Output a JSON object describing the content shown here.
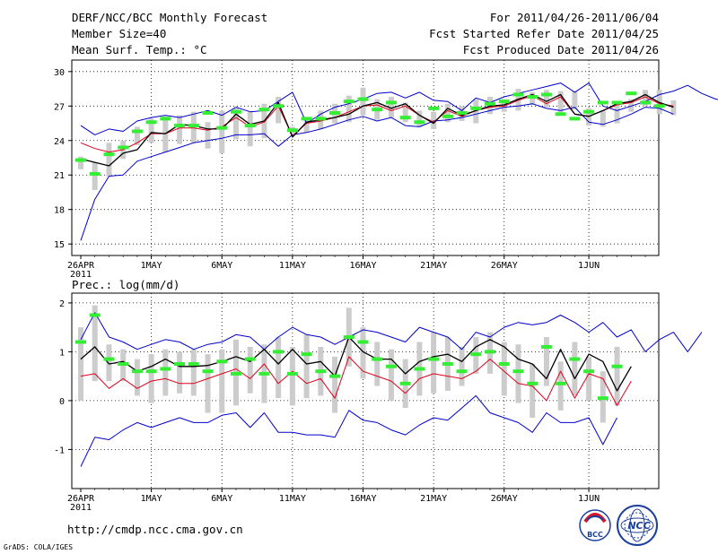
{
  "header": {
    "title": "DERF/NCC/BCC Monthly Forecast",
    "member_size": "Member Size=40",
    "variable": "Mean Surf. Temp.: °C",
    "period": "For 2011/04/26-2011/06/04",
    "fcst_started": "Fcst Started Refer Date 2011/04/25",
    "fcst_produced": "Fcst Produced Date 2011/04/26"
  },
  "footer": {
    "url": "http://cmdp.ncc.cma.gov.cn",
    "credit": "GrADS: COLA/IGES",
    "logo_bcc": "BCC",
    "logo_ncc": "NCC"
  },
  "colors": {
    "ensemble_range": "#0000cc",
    "mean": "#000000",
    "spread": "#e0001a",
    "observed": "#33ee33",
    "climate_box": "#cccccc",
    "grid": "#000000"
  },
  "x_tick_labels": [
    "26APR",
    "1MAY",
    "6MAY",
    "11MAY",
    "16MAY",
    "21MAY",
    "26MAY",
    "1JUN"
  ],
  "x_tick_days": [
    0,
    5,
    10,
    15,
    20,
    25,
    30,
    36
  ],
  "x_year_label": "2011",
  "chart_data": [
    {
      "type": "line",
      "title": "Mean Surf. Temp.: °C",
      "ylim": [
        14,
        31
      ],
      "yticks": [
        15,
        18,
        21,
        24,
        27,
        30
      ],
      "ndays": 40,
      "series": [
        {
          "name": "ensemble max",
          "color": "#0000cc",
          "values": [
            25.3,
            24.5,
            25.0,
            24.8,
            25.7,
            26.0,
            26.2,
            26.0,
            26.3,
            26.6,
            26.2,
            26.9,
            26.5,
            26.6,
            27.4,
            28.2,
            25.5,
            26.3,
            26.9,
            27.2,
            27.6,
            28.1,
            28.2,
            27.7,
            28.2,
            27.5,
            27.4,
            26.6,
            27.7,
            27.3,
            27.8,
            28.1,
            28.4,
            28.7,
            29.0,
            28.2,
            29.0,
            27.0,
            26.6,
            27.0,
            27.4,
            28.0,
            28.3,
            28.8,
            28.1,
            27.6,
            27.4
          ]
        },
        {
          "name": "ensemble mean",
          "color": "#000000",
          "values": [
            22.4,
            22.1,
            21.8,
            22.9,
            23.2,
            24.7,
            24.6,
            25.4,
            25.3,
            25.0,
            25.0,
            26.3,
            25.4,
            25.7,
            27.3,
            24.3,
            25.6,
            25.8,
            26.0,
            26.3,
            27.0,
            27.3,
            26.8,
            27.2,
            26.2,
            25.5,
            26.8,
            26.2,
            26.6,
            27.0,
            27.1,
            27.6,
            28.0,
            27.4,
            28.0,
            26.3,
            26.1,
            26.6,
            27.2,
            27.4,
            28.0,
            27.3,
            26.9
          ]
        },
        {
          "name": "ensemble median",
          "color": "#e0001a",
          "values": [
            23.8,
            23.3,
            23.0,
            23.2,
            23.8,
            24.6,
            24.6,
            25.1,
            25.1,
            24.9,
            25.2,
            26.0,
            25.2,
            25.6,
            27.0,
            24.4,
            25.5,
            25.7,
            26.0,
            26.5,
            27.0,
            27.1,
            26.6,
            27.0,
            26.2,
            25.6,
            26.6,
            26.1,
            26.6,
            26.9,
            27.0,
            27.5,
            27.9,
            27.2,
            27.8,
            26.3,
            26.1,
            26.6,
            27.1,
            27.3,
            27.8,
            27.2,
            27.0
          ]
        },
        {
          "name": "ensemble min",
          "color": "#0000cc",
          "values": [
            15.3,
            18.9,
            20.9,
            21.0,
            22.2,
            22.6,
            23.0,
            23.4,
            23.8,
            24.0,
            24.2,
            24.5,
            24.5,
            24.6,
            23.5,
            24.5,
            24.7,
            25.0,
            25.4,
            25.8,
            26.1,
            25.7,
            26.0,
            25.3,
            25.2,
            25.7,
            25.8,
            26.0,
            26.3,
            26.6,
            26.9,
            27.0,
            27.2,
            26.8,
            26.6,
            26.9,
            25.6,
            25.4,
            25.8,
            26.3,
            26.9,
            26.8,
            26.3
          ]
        },
        {
          "name": "observed",
          "color": "#33ee33",
          "values": [
            22.3,
            21.1,
            22.8,
            23.4,
            24.8,
            25.6,
            25.9,
            25.3,
            25.3,
            26.4,
            25.1,
            26.5,
            25.3,
            26.7,
            27.0,
            24.9,
            25.9,
            25.9,
            26.4,
            27.4,
            27.6,
            26.7,
            27.3,
            26.0,
            25.6,
            26.8,
            26.1,
            26.4,
            26.8,
            27.2,
            27.4,
            28.0,
            27.8,
            28.0,
            26.3,
            25.9,
            26.5,
            27.3,
            27.3,
            28.1,
            27.3,
            27.0
          ]
        },
        {
          "name": "climate low",
          "color": "#cccccc",
          "values": [
            21.5,
            19.7,
            20.9,
            22.4,
            23.6,
            23.8,
            23.0,
            23.7,
            23.8,
            23.3,
            22.9,
            24.1,
            23.5,
            24.2,
            25.5,
            24.6,
            24.7,
            25.0,
            25.5,
            25.6,
            26.2,
            25.8,
            26.0,
            25.6,
            25.2,
            25.0,
            25.6,
            25.7,
            25.5,
            26.3,
            26.5,
            26.6,
            27.1,
            26.9,
            26.2,
            26.7,
            25.3,
            25.2,
            25.5,
            26.5,
            27.0,
            26.3,
            26.2
          ]
        },
        {
          "name": "climate high",
          "color": "#cccccc",
          "values": [
            22.6,
            22.1,
            23.8,
            24.0,
            25.2,
            25.9,
            26.1,
            26.2,
            26.5,
            25.6,
            26.6,
            26.8,
            26.5,
            27.2,
            27.8,
            25.2,
            25.8,
            26.6,
            27.2,
            27.9,
            28.6,
            27.6,
            27.8,
            27.3,
            26.6,
            26.5,
            27.2,
            27.0,
            27.6,
            27.8,
            27.6,
            28.5,
            28.2,
            28.4,
            28.3,
            28.3,
            26.8,
            26.6,
            27.3,
            27.6,
            28.4,
            28.4,
            27.5
          ]
        }
      ]
    },
    {
      "type": "line",
      "title": "Prec.: log(mm/d)",
      "ylim": [
        -1.8,
        2.2
      ],
      "yticks": [
        -1,
        0,
        1,
        2
      ],
      "ndays": 40,
      "series": [
        {
          "name": "ensemble max",
          "color": "#0000cc",
          "values": [
            1.25,
            1.8,
            1.3,
            1.2,
            1.05,
            1.15,
            1.25,
            1.2,
            1.05,
            1.15,
            1.2,
            1.35,
            1.3,
            1.05,
            1.3,
            1.5,
            1.35,
            1.3,
            1.15,
            1.3,
            1.45,
            1.4,
            1.3,
            1.2,
            1.5,
            1.4,
            1.3,
            1.05,
            1.4,
            1.3,
            1.5,
            1.6,
            1.55,
            1.6,
            1.75,
            1.6,
            1.4,
            1.6,
            1.3,
            1.45,
            1.0,
            1.25,
            1.4,
            1.0,
            1.4
          ]
        },
        {
          "name": "ensemble mean",
          "color": "#000000",
          "values": [
            0.85,
            1.1,
            0.75,
            0.8,
            0.6,
            0.7,
            0.85,
            0.7,
            0.7,
            0.72,
            0.8,
            0.9,
            0.8,
            1.05,
            0.75,
            1.05,
            0.75,
            0.8,
            0.5,
            1.3,
            1.0,
            0.85,
            0.85,
            0.55,
            0.8,
            0.9,
            0.95,
            0.8,
            1.1,
            1.25,
            1.1,
            0.85,
            0.75,
            0.45,
            1.05,
            0.45,
            0.95,
            0.8,
            0.2,
            0.7
          ]
        },
        {
          "name": "ensemble median",
          "color": "#e0001a",
          "values": [
            0.5,
            0.55,
            0.25,
            0.45,
            0.25,
            0.4,
            0.45,
            0.35,
            0.35,
            0.45,
            0.55,
            0.65,
            0.45,
            0.75,
            0.35,
            0.6,
            0.35,
            0.45,
            0.05,
            0.9,
            0.6,
            0.5,
            0.4,
            0.15,
            0.45,
            0.55,
            0.5,
            0.45,
            0.6,
            0.85,
            0.6,
            0.35,
            0.3,
            0.0,
            0.6,
            0.05,
            0.55,
            0.45,
            -0.1,
            0.4
          ]
        },
        {
          "name": "ensemble min",
          "color": "#0000cc",
          "values": [
            -1.35,
            -0.75,
            -0.8,
            -0.6,
            -0.45,
            -0.55,
            -0.45,
            -0.35,
            -0.45,
            -0.45,
            -0.3,
            -0.25,
            -0.55,
            -0.25,
            -0.65,
            -0.65,
            -0.7,
            -0.7,
            -0.75,
            -0.2,
            -0.4,
            -0.45,
            -0.6,
            -0.7,
            -0.5,
            -0.35,
            -0.4,
            -0.15,
            0.1,
            -0.25,
            -0.35,
            -0.45,
            -0.65,
            -0.25,
            -0.45,
            -0.45,
            -0.35,
            -0.9,
            -0.35
          ]
        },
        {
          "name": "observed",
          "color": "#33ee33",
          "values": [
            1.2,
            1.75,
            0.85,
            0.75,
            0.6,
            0.6,
            0.65,
            0.75,
            0.75,
            0.6,
            0.8,
            0.55,
            0.85,
            0.55,
            1.0,
            0.55,
            0.95,
            0.6,
            0.5,
            1.3,
            1.2,
            0.85,
            0.7,
            0.35,
            0.65,
            0.85,
            0.75,
            0.6,
            0.95,
            1.0,
            0.75,
            0.6,
            0.35,
            1.1,
            0.35,
            0.85,
            0.6,
            0.05,
            0.7
          ]
        },
        {
          "name": "climate low",
          "color": "#cccccc",
          "values": [
            0.0,
            0.4,
            0.4,
            0.4,
            0.1,
            -0.05,
            0.1,
            0.15,
            0.1,
            -0.25,
            -0.25,
            -0.1,
            0.15,
            -0.05,
            0.05,
            -0.1,
            0.05,
            0.1,
            -0.25,
            0.7,
            0.45,
            0.3,
            0.0,
            -0.15,
            0.1,
            0.15,
            0.2,
            0.3,
            0.55,
            0.55,
            0.1,
            -0.05,
            -0.35,
            0.3,
            -0.2,
            0.1,
            0.0,
            -0.45,
            -0.1
          ]
        },
        {
          "name": "climate high",
          "color": "#cccccc",
          "values": [
            1.5,
            1.95,
            1.15,
            1.05,
            0.85,
            0.95,
            1.05,
            1.0,
            1.05,
            0.95,
            1.05,
            1.25,
            1.1,
            1.15,
            1.3,
            1.1,
            1.35,
            1.1,
            0.9,
            1.9,
            1.5,
            1.2,
            1.05,
            0.85,
            1.2,
            1.4,
            1.3,
            1.1,
            1.3,
            1.4,
            1.2,
            1.15,
            0.75,
            1.3,
            0.8,
            1.2,
            0.9,
            0.6,
            1.1
          ]
        }
      ]
    }
  ]
}
